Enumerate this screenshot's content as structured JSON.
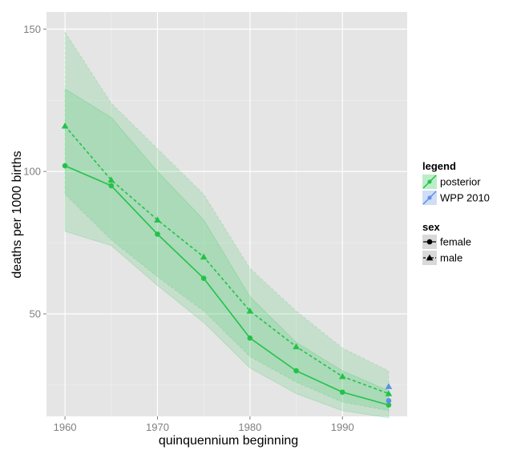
{
  "chart_data": {
    "type": "line",
    "xlabel": "quinquennium beginning",
    "ylabel": "deaths per 1000 births",
    "xlim": [
      1958,
      1997
    ],
    "ylim": [
      14,
      156
    ],
    "x_ticks": [
      1960,
      1970,
      1980,
      1990
    ],
    "y_ticks": [
      50,
      100,
      150
    ],
    "grid": true,
    "legend_position": "right",
    "x": [
      1960,
      1965,
      1970,
      1975,
      1980,
      1985,
      1990,
      1995
    ],
    "series": [
      {
        "name": "female",
        "legend": "posterior",
        "sex": "female",
        "marker": "circle",
        "linestyle": "solid",
        "color": "#22c24a",
        "values": [
          102,
          95,
          78,
          62.5,
          41.5,
          30,
          22.5,
          18
        ],
        "band_50": {
          "lower": [
            79,
            74,
            60,
            47,
            31,
            22,
            16,
            13.5
          ],
          "upper": [
            129,
            119,
            100,
            83,
            56,
            40,
            30,
            23
          ]
        },
        "band_95": {
          "lower": [
            79,
            74,
            60,
            47,
            31,
            22,
            16,
            13.5
          ],
          "upper": [
            129,
            119,
            100,
            83,
            56,
            40,
            30,
            23
          ]
        }
      },
      {
        "name": "male",
        "legend": "posterior",
        "sex": "male",
        "marker": "triangle",
        "linestyle": "dashed",
        "color": "#22c24a",
        "values": [
          116,
          97,
          83,
          70,
          51,
          38.5,
          28,
          22
        ],
        "band_95": {
          "lower": [
            92,
            76,
            63,
            51,
            35,
            26,
            19,
            16
          ],
          "upper": [
            149,
            124,
            108,
            92,
            66,
            51,
            38,
            30
          ]
        }
      },
      {
        "name": "WPP 2010 female",
        "legend": "WPP 2010",
        "sex": "female",
        "marker": "circle",
        "color": "#5f8fe6",
        "x": [
          1995
        ],
        "values": [
          19.5
        ]
      },
      {
        "name": "WPP 2010 male",
        "legend": "WPP 2010",
        "sex": "male",
        "marker": "triangle",
        "color": "#5f8fe6",
        "x": [
          1995
        ],
        "values": [
          24.5
        ]
      }
    ],
    "legends": [
      {
        "title": "legend",
        "items": [
          {
            "label": "posterior",
            "color": "#22c24a"
          },
          {
            "label": "WPP 2010",
            "color": "#5f8fe6"
          }
        ]
      },
      {
        "title": "sex",
        "items": [
          {
            "label": "female",
            "marker": "circle"
          },
          {
            "label": "male",
            "marker": "triangle"
          }
        ]
      }
    ]
  },
  "colors": {
    "panel": "#e5e5e5",
    "grid_major": "#ffffff",
    "grid_minor": "#f2f2f2",
    "posterior": "#22c24a",
    "wpp": "#5f8fe6",
    "legend_key_bg": "#d9d9d9"
  }
}
